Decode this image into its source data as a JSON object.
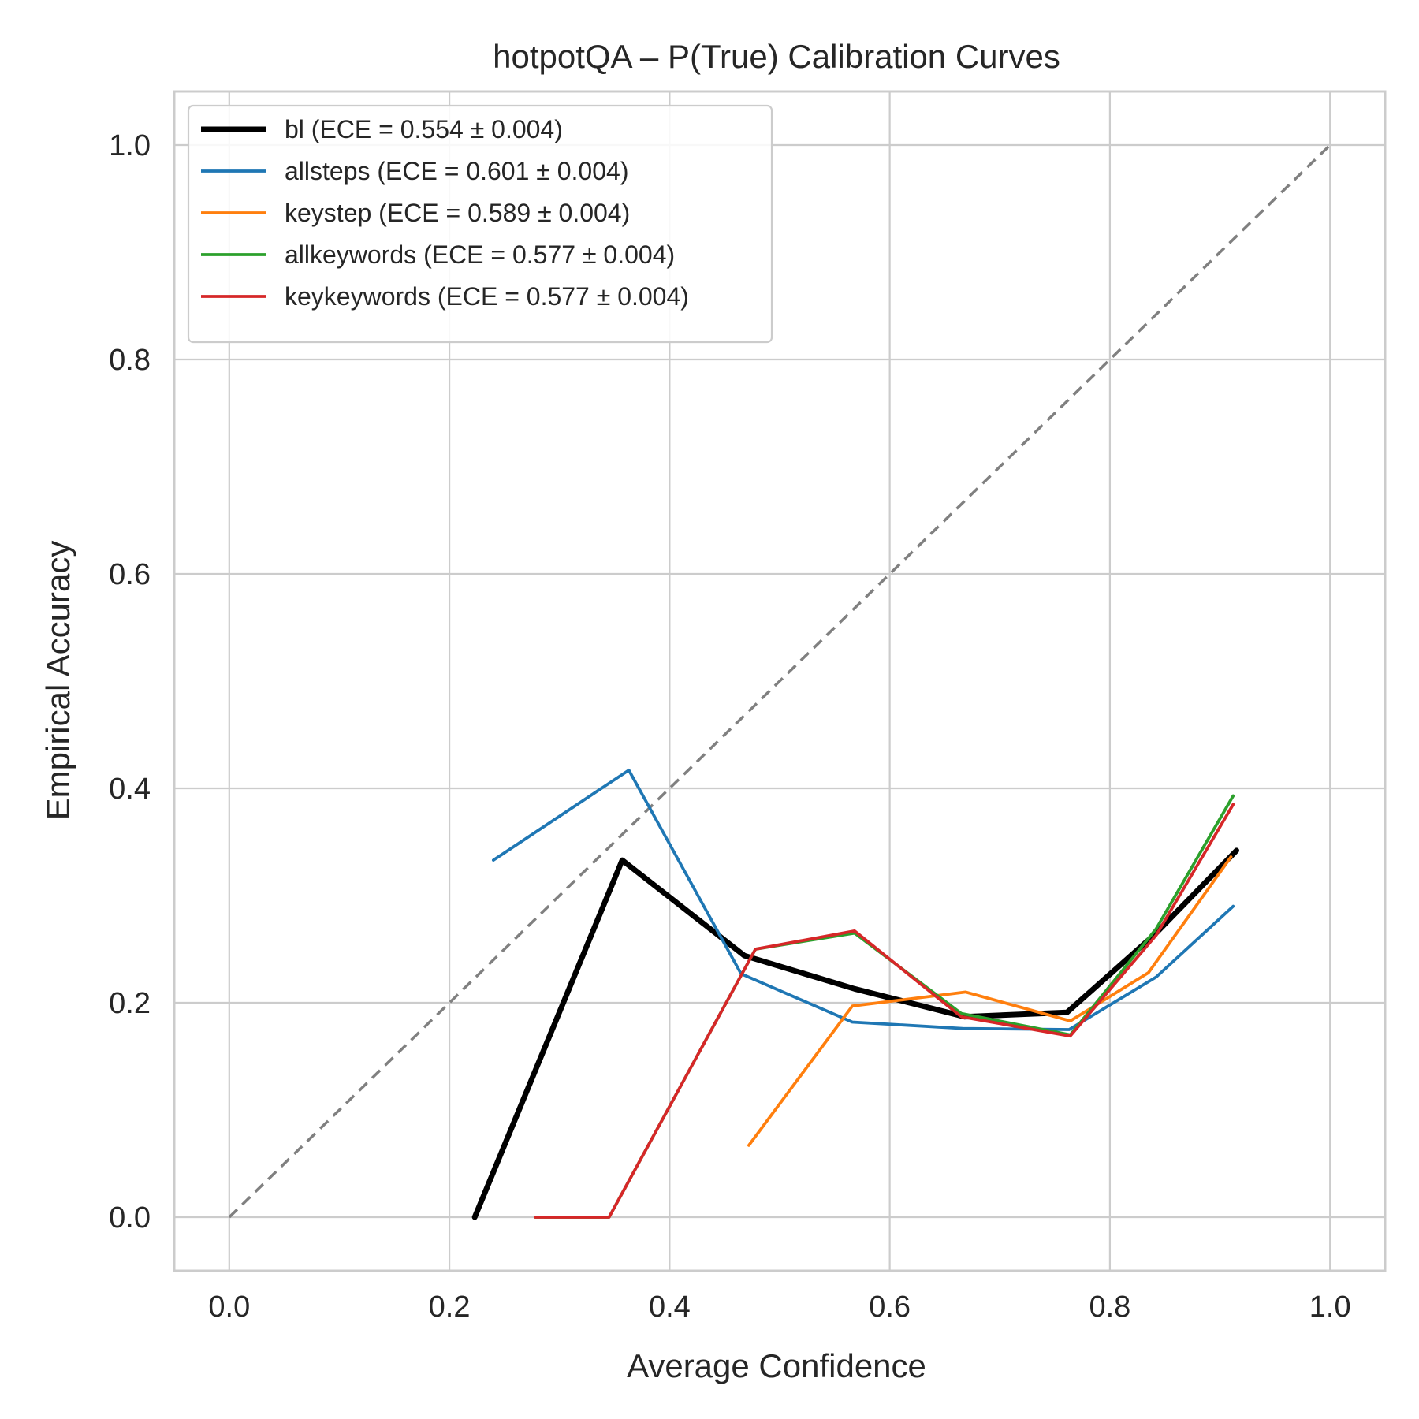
{
  "chart_data": {
    "type": "line",
    "title": "hotpotQA – P(True) Calibration Curves",
    "xlabel": "Average Confidence",
    "ylabel": "Empirical Accuracy",
    "xlim": [
      -0.05,
      1.05
    ],
    "ylim": [
      -0.05,
      1.05
    ],
    "xticks": [
      "0.0",
      "0.2",
      "0.4",
      "0.6",
      "0.8",
      "1.0"
    ],
    "yticks": [
      "0.0",
      "0.2",
      "0.4",
      "0.6",
      "0.8",
      "1.0"
    ],
    "grid": true,
    "legend_position": "upper-left",
    "reference_line": {
      "x": [
        0,
        1
      ],
      "y": [
        0,
        1
      ],
      "color": "#808080",
      "style": "dashed"
    },
    "series": [
      {
        "name": "bl (ECE = 0.554 ± 0.004)",
        "color": "#000000",
        "bold": true,
        "x": [
          0.223,
          0.357,
          0.468,
          0.568,
          0.668,
          0.761,
          0.84,
          0.915
        ],
        "y": [
          0.0,
          0.333,
          0.244,
          0.213,
          0.187,
          0.191,
          0.263,
          0.342
        ]
      },
      {
        "name": "allsteps (ECE = 0.601 ± 0.004)",
        "color": "#1f77b4",
        "bold": false,
        "x": [
          0.24,
          0.363,
          0.465,
          0.566,
          0.666,
          0.763,
          0.842,
          0.912
        ],
        "y": [
          0.333,
          0.417,
          0.227,
          0.182,
          0.176,
          0.175,
          0.224,
          0.29
        ]
      },
      {
        "name": "keystep (ECE = 0.589 ± 0.004)",
        "color": "#ff7f0e",
        "bold": false,
        "x": [
          0.472,
          0.566,
          0.669,
          0.764,
          0.835,
          0.91
        ],
        "y": [
          0.067,
          0.197,
          0.21,
          0.183,
          0.228,
          0.336
        ]
      },
      {
        "name": "allkeywords (ECE = 0.577 ± 0.004)",
        "color": "#2ca02c",
        "bold": false,
        "x": [
          0.278,
          0.345,
          0.478,
          0.568,
          0.665,
          0.764,
          0.842,
          0.912
        ],
        "y": [
          0.0,
          0.0,
          0.25,
          0.265,
          0.19,
          0.17,
          0.269,
          0.393
        ]
      },
      {
        "name": "keykeywords (ECE = 0.577 ± 0.004)",
        "color": "#d62728",
        "bold": false,
        "x": [
          0.278,
          0.345,
          0.478,
          0.568,
          0.665,
          0.764,
          0.842,
          0.912
        ],
        "y": [
          0.0,
          0.0,
          0.25,
          0.267,
          0.187,
          0.169,
          0.263,
          0.385
        ]
      }
    ]
  }
}
